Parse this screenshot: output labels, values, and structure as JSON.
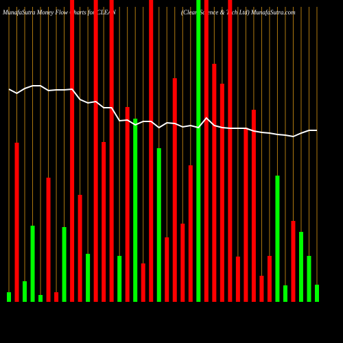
{
  "chart_data": {
    "type": "bar",
    "title": "MunafaSutra  Money Flow  Charts for CLEAN",
    "subtitle": "(Clean Science  & Tech Ltd) MunafaSutra.com",
    "categories": [
      null,
      null,
      null,
      null,
      null,
      null,
      null,
      null,
      null,
      null,
      null,
      null,
      null,
      null,
      null,
      null,
      null,
      null,
      null,
      null,
      null,
      null,
      null,
      null,
      null,
      null,
      null,
      null,
      null,
      null,
      null,
      null,
      null,
      null,
      null,
      null,
      null,
      null,
      null,
      null
    ],
    "ylim": [
      0,
      440
    ],
    "grid": true,
    "grid_color": "#b07a10",
    "series": [
      {
        "type": "bar",
        "colors": [
          "#00ff00",
          "#ff0000",
          "#00ff00",
          "#00ff00",
          "#00ff00",
          "#ff0000",
          "#ff0000",
          "#00ff00",
          "#ff0000",
          "#ff0000",
          "#00ff00",
          "#ff0000",
          "#ff0000",
          "#ff0000",
          "#00ff00",
          "#ff0000",
          "#00ff00",
          "#ff0000",
          "#ff0000",
          "#00ff00",
          "#ff0000",
          "#ff0000",
          "#ff0000",
          "#ff0000",
          "#00ff00",
          "#ff0000",
          "#ff0000",
          "#ff0000",
          "#ff0000",
          "#ff0000",
          "#ff0000",
          "#ff0000",
          "#ff0000",
          "#ff0000",
          "#00ff00",
          "#00ff00",
          "#ff0000",
          "#00ff00",
          "#00ff00",
          "#00ff00"
        ],
        "values": [
          14,
          232,
          30,
          111,
          10,
          181,
          14,
          109,
          440,
          156,
          70,
          440,
          233,
          440,
          67,
          284,
          267,
          56,
          440,
          224,
          94,
          326,
          114,
          199,
          440,
          440,
          347,
          318,
          440,
          66,
          254,
          280,
          38,
          67,
          184,
          24,
          118,
          102,
          67,
          25
        ]
      },
      {
        "type": "line",
        "color": "#ffffff",
        "values": [
          310,
          304,
          311,
          315,
          315,
          308,
          309,
          309,
          310,
          295,
          290,
          292,
          283,
          283,
          264,
          265,
          258,
          263,
          263,
          254,
          261,
          260,
          255,
          257,
          254,
          268,
          257,
          254,
          253,
          253,
          253,
          249,
          247,
          246,
          244,
          243,
          241,
          246,
          250,
          250
        ]
      }
    ]
  }
}
